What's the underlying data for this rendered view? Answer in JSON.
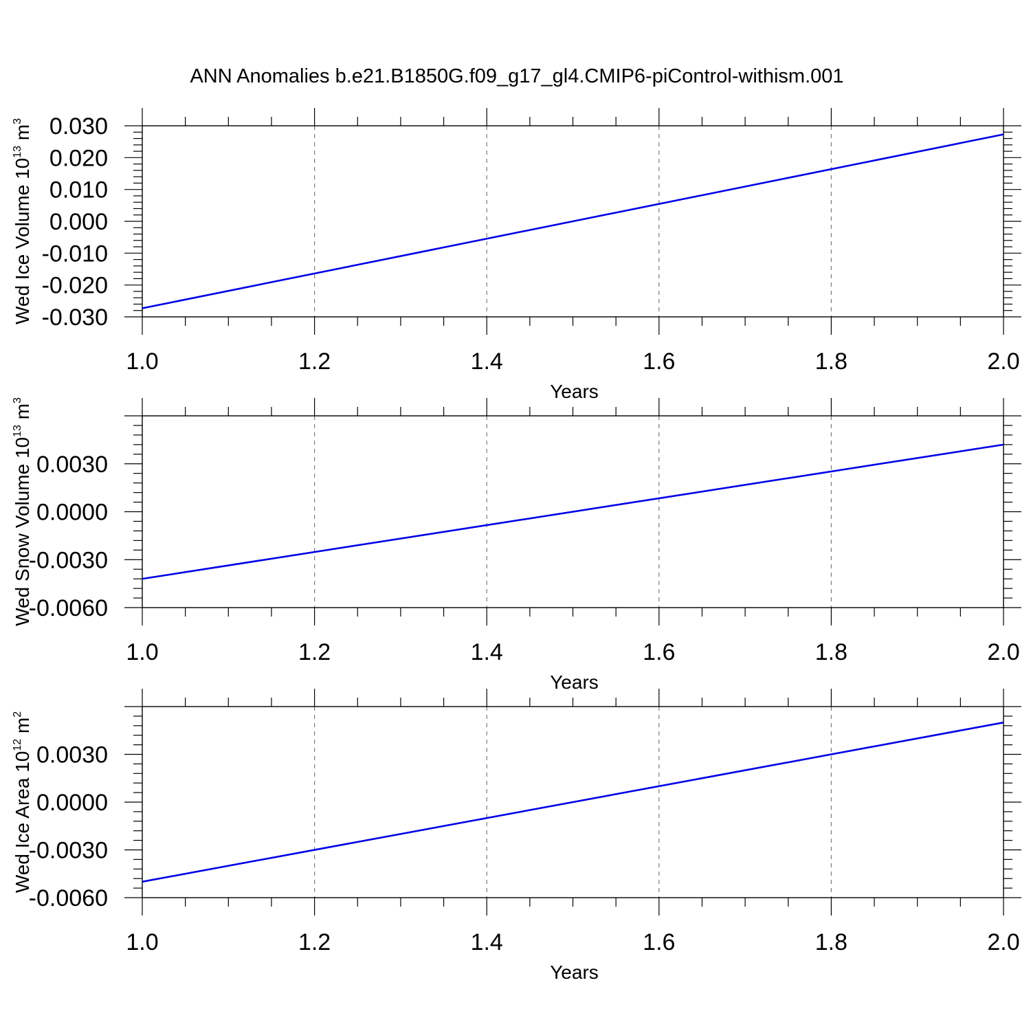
{
  "title": "ANN Anomalies b.e21.B1850G.f09_g17_gl4.CMIP6-piControl-withism.001",
  "chart_data": [
    {
      "type": "line",
      "title": "ANN Anomalies b.e21.B1850G.f09_g17_gl4.CMIP6-piControl-withism.001",
      "xlabel": "Years",
      "ylabel": {
        "text": "Wed Ice Volume 10",
        "sup": "13",
        "unit": " m",
        "unit_sup": "3"
      },
      "xlim": [
        1.0,
        2.0
      ],
      "ylim": [
        -0.03,
        0.03
      ],
      "x_ticks": [
        "1.0",
        "1.2",
        "1.4",
        "1.6",
        "1.8",
        "2.0"
      ],
      "y_ticks": [
        "-0.030",
        "-0.020",
        "-0.010",
        "0.000",
        "0.010",
        "0.020",
        "0.030"
      ],
      "grid": "x-dashed",
      "line_color": "#0000e6",
      "series": [
        {
          "x": [
            1.0,
            2.0
          ],
          "y": [
            -0.0273,
            0.0273
          ]
        }
      ]
    },
    {
      "type": "line",
      "xlabel": "Years",
      "ylabel": {
        "text": "Wed Snow Volume 10",
        "sup": "13",
        "unit": " m",
        "unit_sup": "3"
      },
      "xlim": [
        1.0,
        2.0
      ],
      "ylim": [
        -0.006,
        0.006
      ],
      "x_ticks": [
        "1.0",
        "1.2",
        "1.4",
        "1.6",
        "1.8",
        "2.0"
      ],
      "y_ticks": [
        "-0.0060",
        "-0.0030",
        "0.0000",
        "0.0030"
      ],
      "grid": "x-dashed",
      "line_color": "#0000e6",
      "series": [
        {
          "x": [
            1.0,
            2.0
          ],
          "y": [
            -0.0042,
            0.0042
          ]
        }
      ]
    },
    {
      "type": "line",
      "xlabel": "Years",
      "ylabel": {
        "text": "Wed Ice Area 10",
        "sup": "12",
        "unit": " m",
        "unit_sup": "2"
      },
      "xlim": [
        1.0,
        2.0
      ],
      "ylim": [
        -0.006,
        0.006
      ],
      "x_ticks": [
        "1.0",
        "1.2",
        "1.4",
        "1.6",
        "1.8",
        "2.0"
      ],
      "y_ticks": [
        "-0.0060",
        "-0.0030",
        "0.0000",
        "0.0030"
      ],
      "grid": "x-dashed",
      "line_color": "#0000e6",
      "series": [
        {
          "x": [
            1.0,
            2.0
          ],
          "y": [
            -0.005,
            0.005
          ]
        }
      ]
    }
  ]
}
